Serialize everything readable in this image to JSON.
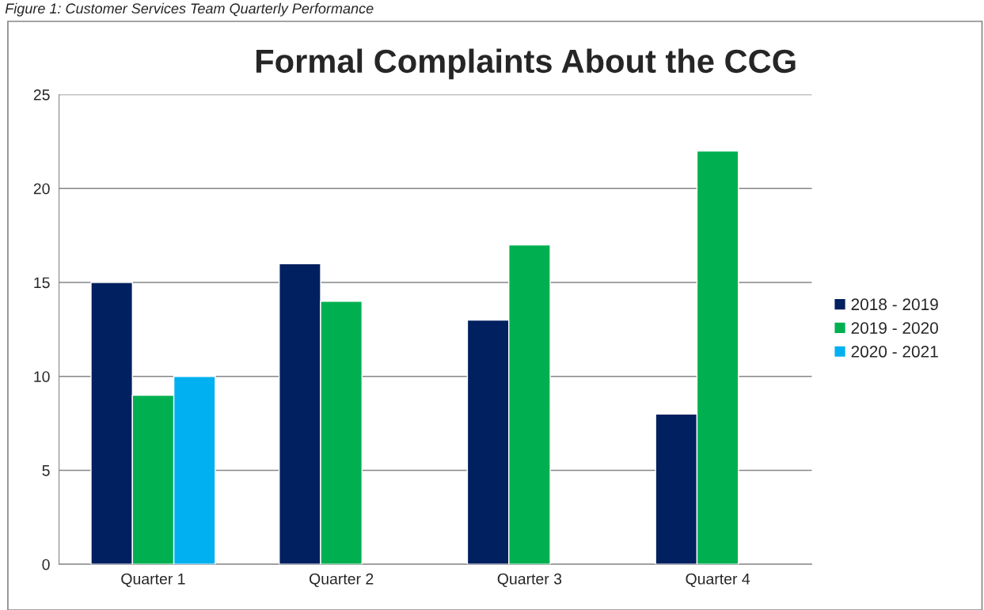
{
  "chart_data": {
    "type": "bar",
    "title": "Formal Complaints About the CCG",
    "annotations": [
      "Figure 1: Customer Services Team Quarterly Performance"
    ],
    "categories": [
      "Quarter 1",
      "Quarter 2",
      "Quarter 3",
      "Quarter 4"
    ],
    "series": [
      {
        "name": "2018 - 2019",
        "color": "#002060",
        "values": [
          15,
          16,
          13,
          8
        ]
      },
      {
        "name": "2019 - 2020",
        "color": "#00b050",
        "values": [
          9,
          14,
          17,
          22
        ]
      },
      {
        "name": "2020 - 2021",
        "color": "#00b0f0",
        "values": [
          10,
          null,
          null,
          null
        ]
      }
    ],
    "ylim": [
      0,
      25
    ],
    "yticks": [
      0,
      5,
      10,
      15,
      20,
      25
    ],
    "grid": "y",
    "legend": "right"
  }
}
